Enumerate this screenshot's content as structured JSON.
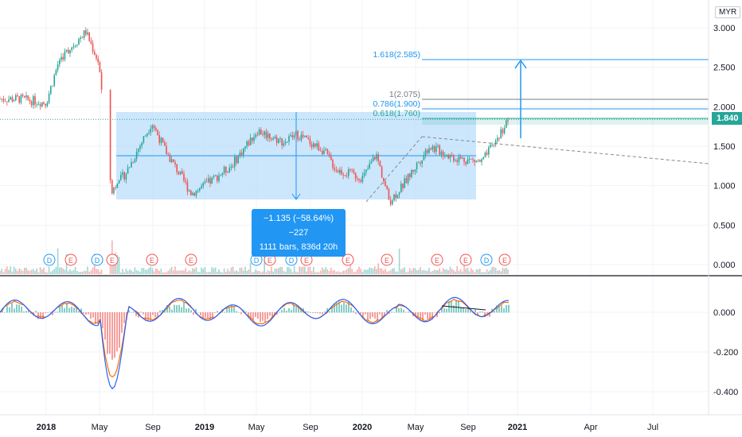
{
  "header": {
    "currency": "MYR"
  },
  "last_price": "1.840",
  "colors": {
    "up": "#26a69a",
    "down": "#ef5350",
    "fib": "#2196f3",
    "measure": "#2196f3",
    "grid": "#f0f3fa",
    "macd": "#2962ff",
    "signal": "#ff6d00"
  },
  "chart_data": [
    {
      "type": "candlestick",
      "title": "",
      "currency": "MYR",
      "x_ticks": [
        "2018",
        "May",
        "Sep",
        "2019",
        "May",
        "Sep",
        "2020",
        "May",
        "Sep",
        "2021",
        "Apr",
        "Jul"
      ],
      "bold_x_ticks": [
        "2018",
        "2019",
        "2020",
        "2021"
      ],
      "y_ticks": [
        "3.000",
        "2.500",
        "2.000",
        "1.500",
        "1.000",
        "0.500",
        "0.000"
      ],
      "ylim": [
        0,
        3.1
      ],
      "price_path": [
        {
          "date": "2017-11",
          "close": 2.1
        },
        {
          "date": "2018-01",
          "close": 2.05
        },
        {
          "date": "2018-02",
          "close": 2.6
        },
        {
          "date": "2018-04",
          "close": 2.95
        },
        {
          "date": "2018-05",
          "close": 2.55
        },
        {
          "date": "2018-05-20",
          "close": 1.25
        },
        {
          "date": "2018-06",
          "close": 0.95
        },
        {
          "date": "2018-07",
          "close": 1.15
        },
        {
          "date": "2018-09",
          "close": 1.8
        },
        {
          "date": "2018-10",
          "close": 1.45
        },
        {
          "date": "2018-12",
          "close": 0.9
        },
        {
          "date": "2019-01",
          "close": 1.0
        },
        {
          "date": "2019-03",
          "close": 1.25
        },
        {
          "date": "2019-05",
          "close": 1.7
        },
        {
          "date": "2019-07",
          "close": 1.55
        },
        {
          "date": "2019-08",
          "close": 1.65
        },
        {
          "date": "2019-10",
          "close": 1.45
        },
        {
          "date": "2019-11",
          "close": 1.2
        },
        {
          "date": "2020-01",
          "close": 1.1
        },
        {
          "date": "2020-02",
          "close": 1.4
        },
        {
          "date": "2020-03",
          "close": 0.8
        },
        {
          "date": "2020-04",
          "close": 1.0
        },
        {
          "date": "2020-06",
          "close": 1.5
        },
        {
          "date": "2020-08",
          "close": 1.35
        },
        {
          "date": "2020-10",
          "close": 1.3
        },
        {
          "date": "2020-11",
          "close": 1.55
        },
        {
          "date": "2020-12",
          "close": 1.84
        }
      ],
      "fibonacci_levels": [
        {
          "label": "1.618(2.585)",
          "value": 2.585
        },
        {
          "label": "1(2.075)",
          "value": 2.075
        },
        {
          "label": "0.786(1.900)",
          "value": 1.9
        },
        {
          "label": "0.618(1.760)",
          "value": 1.76
        }
      ],
      "measure": {
        "line1": "−1.135 (−58.64%) −227",
        "line2": "1111 bars, 836d 20h"
      },
      "event_markers": [
        "D",
        "E",
        "D",
        "E",
        "E",
        "E",
        "D",
        "E",
        "D",
        "E",
        "E",
        "E",
        "E",
        "E",
        "D",
        "E"
      ],
      "legend": "none",
      "grid": true
    },
    {
      "type": "line",
      "title": "",
      "y_ticks": [
        "0.000",
        "-0.200",
        "-0.400"
      ],
      "ylim": [
        -0.45,
        0.15
      ],
      "series": [
        {
          "values": []
        },
        {
          "values": []
        }
      ]
    }
  ]
}
